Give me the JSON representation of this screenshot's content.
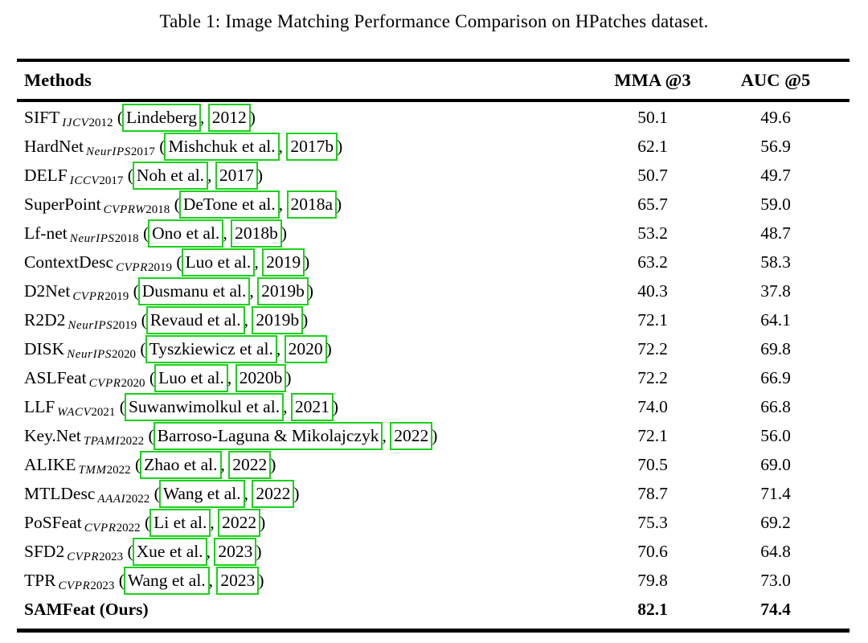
{
  "title": "Table 1: Image Matching Performance Comparison on HPatches dataset.",
  "header": {
    "methods": "Methods",
    "mma": "MMA @3",
    "auc": "AUC @5"
  },
  "colors": {
    "citation_box": "#1BD11B",
    "text": "#000000",
    "rule": "#000000"
  },
  "rows": [
    {
      "method": "SIFT",
      "venue": "IJCV",
      "venue_year": "2012",
      "cite_author": "Lindeberg",
      "cite_year": "2012",
      "mma": "50.1",
      "auc": "49.6",
      "bold": false
    },
    {
      "method": "HardNet",
      "venue": "NeurIPS",
      "venue_year": "2017",
      "cite_author": "Mishchuk et al.",
      "cite_year": "2017b",
      "mma": "62.1",
      "auc": "56.9",
      "bold": false
    },
    {
      "method": "DELF",
      "venue": "ICCV",
      "venue_year": "2017",
      "cite_author": "Noh et al.",
      "cite_year": "2017",
      "mma": "50.7",
      "auc": "49.7",
      "bold": false
    },
    {
      "method": "SuperPoint",
      "venue": "CVPRW",
      "venue_year": "2018",
      "cite_author": "DeTone et al.",
      "cite_year": "2018a",
      "mma": "65.7",
      "auc": "59.0",
      "bold": false
    },
    {
      "method": "Lf-net",
      "venue": "NeurIPS",
      "venue_year": "2018",
      "cite_author": "Ono et al.",
      "cite_year": "2018b",
      "mma": "53.2",
      "auc": "48.7",
      "bold": false
    },
    {
      "method": "ContextDesc",
      "venue": "CVPR",
      "venue_year": "2019",
      "cite_author": "Luo et al.",
      "cite_year": "2019",
      "mma": "63.2",
      "auc": "58.3",
      "bold": false
    },
    {
      "method": "D2Net",
      "venue": "CVPR",
      "venue_year": "2019",
      "cite_author": "Dusmanu et al.",
      "cite_year": "2019b",
      "mma": "40.3",
      "auc": "37.8",
      "bold": false
    },
    {
      "method": "R2D2",
      "venue": "NeurIPS",
      "venue_year": "2019",
      "cite_author": "Revaud et al.",
      "cite_year": "2019b",
      "mma": "72.1",
      "auc": "64.1",
      "bold": false
    },
    {
      "method": "DISK",
      "venue": "NeurIPS",
      "venue_year": "2020",
      "cite_author": "Tyszkiewicz et al.",
      "cite_year": "2020",
      "mma": "72.2",
      "auc": "69.8",
      "bold": false
    },
    {
      "method": "ASLFeat",
      "venue": "CVPR",
      "venue_year": "2020",
      "cite_author": "Luo et al.",
      "cite_year": "2020b",
      "mma": "72.2",
      "auc": "66.9",
      "bold": false
    },
    {
      "method": "LLF",
      "venue": "WACV",
      "venue_year": "2021",
      "cite_author": "Suwanwimolkul et al.",
      "cite_year": "2021",
      "mma": "74.0",
      "auc": "66.8",
      "bold": false
    },
    {
      "method": "Key.Net",
      "venue": "TPAMI",
      "venue_year": "2022",
      "cite_author": "Barroso-Laguna & Mikolajczyk",
      "cite_year": "2022",
      "mma": "72.1",
      "auc": "56.0",
      "bold": false
    },
    {
      "method": "ALIKE",
      "venue": "TMM",
      "venue_year": "2022",
      "cite_author": "Zhao et al.",
      "cite_year": "2022",
      "mma": "70.5",
      "auc": "69.0",
      "bold": false
    },
    {
      "method": "MTLDesc",
      "venue": "AAAI",
      "venue_year": "2022",
      "cite_author": "Wang et al.",
      "cite_year": "2022",
      "mma": "78.7",
      "auc": "71.4",
      "bold": false
    },
    {
      "method": "PoSFeat",
      "venue": "CVPR",
      "venue_year": "2022",
      "cite_author": "Li et al.",
      "cite_year": "2022",
      "mma": "75.3",
      "auc": "69.2",
      "bold": false
    },
    {
      "method": "SFD2",
      "venue": "CVPR",
      "venue_year": "2023",
      "cite_author": "Xue et al.",
      "cite_year": "2023",
      "mma": "70.6",
      "auc": "64.8",
      "bold": false
    },
    {
      "method": "TPR",
      "venue": "CVPR",
      "venue_year": "2023",
      "cite_author": "Wang et al.",
      "cite_year": "2023",
      "mma": "79.8",
      "auc": "73.0",
      "bold": false
    },
    {
      "method": "SAMFeat (Ours)",
      "venue": "",
      "venue_year": "",
      "cite_author": "",
      "cite_year": "",
      "mma": "82.1",
      "auc": "74.4",
      "bold": true
    }
  ]
}
